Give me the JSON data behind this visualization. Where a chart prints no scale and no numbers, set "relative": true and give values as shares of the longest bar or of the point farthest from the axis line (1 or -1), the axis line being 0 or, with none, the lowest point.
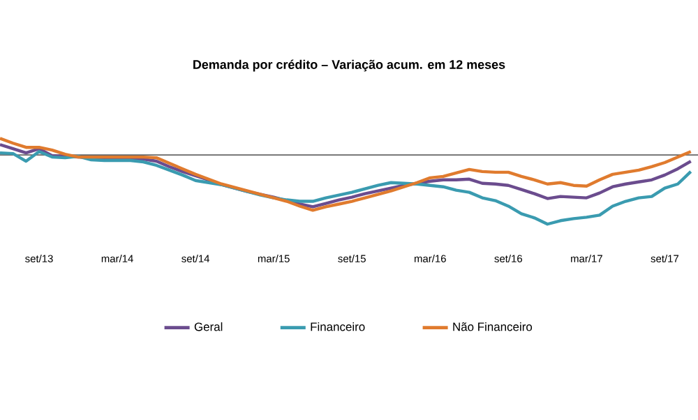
{
  "chart_data": {
    "type": "line",
    "title": "Demanda por crédito – Variação acum. em 12 meses",
    "categories": [
      null,
      null,
      null,
      "set/13",
      null,
      null,
      null,
      null,
      null,
      "mar/14",
      null,
      null,
      null,
      null,
      null,
      "set/14",
      null,
      null,
      null,
      null,
      null,
      "mar/15",
      null,
      null,
      null,
      null,
      null,
      "set/15",
      null,
      null,
      null,
      null,
      null,
      "mar/16",
      null,
      null,
      null,
      null,
      null,
      "set/16",
      null,
      null,
      null,
      null,
      null,
      "mar/17",
      null,
      null,
      null,
      null,
      null,
      "set/17",
      null,
      null
    ],
    "relative": true,
    "legend": "bottom",
    "marker": "none",
    "line_style": "solid",
    "series": [
      {
        "name": "Geral",
        "color": "#6b4c8e",
        "values": [
          0.15,
          0.09,
          0.03,
          0.09,
          -0.01,
          -0.02,
          -0.03,
          -0.04,
          -0.05,
          -0.05,
          -0.05,
          -0.06,
          -0.09,
          -0.17,
          -0.24,
          -0.3,
          -0.36,
          -0.43,
          -0.48,
          -0.53,
          -0.57,
          -0.61,
          -0.66,
          -0.71,
          -0.75,
          -0.7,
          -0.65,
          -0.61,
          -0.56,
          -0.52,
          -0.48,
          -0.44,
          -0.41,
          -0.38,
          -0.36,
          -0.36,
          -0.35,
          -0.41,
          -0.42,
          -0.44,
          -0.5,
          -0.56,
          -0.63,
          -0.6,
          -0.61,
          -0.62,
          -0.55,
          -0.46,
          -0.42,
          -0.39,
          -0.36,
          -0.29,
          -0.2,
          -0.09
        ]
      },
      {
        "name": "Financeiro",
        "color": "#3a9bb0",
        "values": [
          0.03,
          0.02,
          -0.09,
          0.05,
          -0.03,
          -0.04,
          -0.02,
          -0.07,
          -0.08,
          -0.08,
          -0.08,
          -0.1,
          -0.15,
          -0.22,
          -0.29,
          -0.37,
          -0.4,
          -0.43,
          -0.48,
          -0.53,
          -0.58,
          -0.62,
          -0.65,
          -0.67,
          -0.67,
          -0.62,
          -0.58,
          -0.54,
          -0.49,
          -0.44,
          -0.4,
          -0.41,
          -0.42,
          -0.44,
          -0.46,
          -0.51,
          -0.54,
          -0.62,
          -0.66,
          -0.74,
          -0.85,
          -0.91,
          -1,
          -0.95,
          -0.92,
          -0.9,
          -0.87,
          -0.74,
          -0.67,
          -0.62,
          -0.6,
          -0.48,
          -0.42,
          -0.24
        ]
      },
      {
        "name": "Não Financeiro",
        "color": "#e07b2e",
        "values": [
          0.24,
          0.17,
          0.11,
          0.11,
          0.07,
          0.01,
          -0.03,
          -0.03,
          -0.03,
          -0.03,
          -0.03,
          -0.03,
          -0.04,
          -0.12,
          -0.2,
          -0.28,
          -0.35,
          -0.42,
          -0.47,
          -0.52,
          -0.57,
          -0.62,
          -0.67,
          -0.74,
          -0.8,
          -0.75,
          -0.71,
          -0.67,
          -0.62,
          -0.57,
          -0.52,
          -0.46,
          -0.4,
          -0.33,
          -0.31,
          -0.26,
          -0.21,
          -0.24,
          -0.25,
          -0.25,
          -0.31,
          -0.36,
          -0.42,
          -0.4,
          -0.44,
          -0.45,
          -0.36,
          -0.28,
          -0.25,
          -0.22,
          -0.17,
          -0.11,
          -0.03,
          0.05
        ]
      }
    ]
  }
}
